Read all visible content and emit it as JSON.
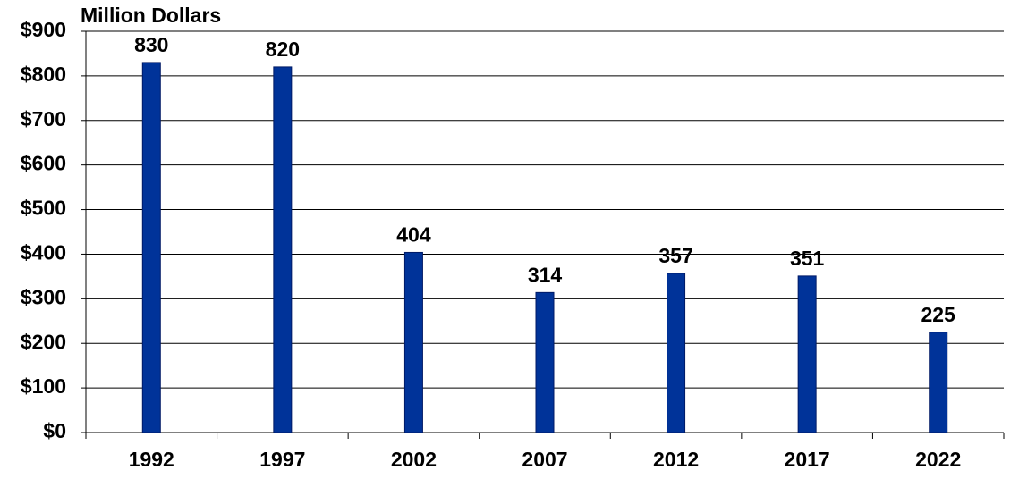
{
  "chart_data": {
    "type": "bar",
    "y_axis_label": "Million Dollars",
    "categories": [
      "1992",
      "1997",
      "2002",
      "2007",
      "2012",
      "2017",
      "2022"
    ],
    "values": [
      830,
      820,
      404,
      314,
      357,
      351,
      225
    ],
    "color": "#003399",
    "ylim": [
      0,
      900
    ],
    "yticks": [
      {
        "value": 0,
        "label": "$0"
      },
      {
        "value": 100,
        "label": "$100"
      },
      {
        "value": 200,
        "label": "$200"
      },
      {
        "value": 300,
        "label": "$300"
      },
      {
        "value": 400,
        "label": "$400"
      },
      {
        "value": 500,
        "label": "$500"
      },
      {
        "value": 600,
        "label": "$600"
      },
      {
        "value": 700,
        "label": "$700"
      },
      {
        "value": 800,
        "label": "$800"
      },
      {
        "value": 900,
        "label": "$900"
      }
    ],
    "grid": true
  }
}
